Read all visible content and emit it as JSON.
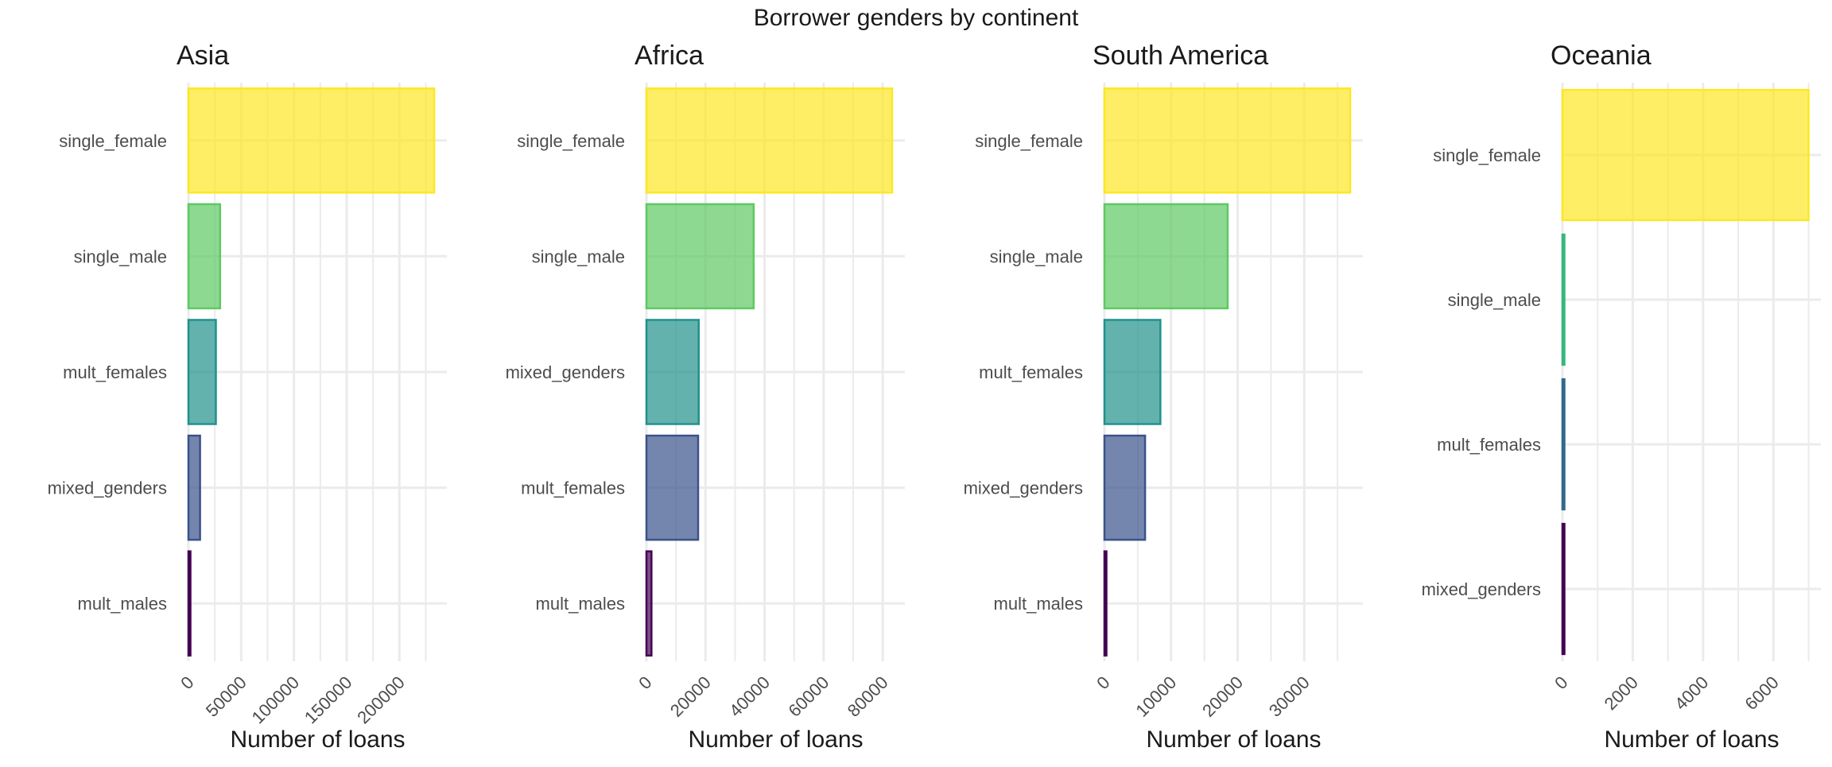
{
  "title": "Borrower genders by continent",
  "chart_data": [
    {
      "type": "bar",
      "orientation": "horizontal",
      "title": "Asia",
      "xlabel": "Number of loans",
      "ylabel": "",
      "categories": [
        "single_female",
        "single_male",
        "mult_females",
        "mixed_genders",
        "mult_males"
      ],
      "values": [
        233000,
        30000,
        26000,
        11000,
        700
      ],
      "colors": [
        "#FDE725",
        "#5EC962",
        "#21918C",
        "#3B528B",
        "#440154"
      ],
      "xlim": [
        0,
        245000
      ],
      "ticks": [
        0,
        50000,
        100000,
        150000,
        200000
      ],
      "tick_labels": [
        "0",
        "50000",
        "100000",
        "150000",
        "200000"
      ],
      "grid": true
    },
    {
      "type": "bar",
      "orientation": "horizontal",
      "title": "Africa",
      "xlabel": "Number of loans",
      "ylabel": "",
      "categories": [
        "single_female",
        "single_male",
        "mixed_genders",
        "mult_females",
        "mult_males"
      ],
      "values": [
        83200,
        36300,
        17700,
        17500,
        1700
      ],
      "colors": [
        "#FDE725",
        "#5EC962",
        "#21918C",
        "#3B528B",
        "#440154"
      ],
      "xlim": [
        0,
        87500
      ],
      "ticks": [
        0,
        20000,
        40000,
        60000,
        80000
      ],
      "tick_labels": [
        "0",
        "20000",
        "40000",
        "60000",
        "80000"
      ],
      "grid": true
    },
    {
      "type": "bar",
      "orientation": "horizontal",
      "title": "South America",
      "xlabel": "Number of loans",
      "ylabel": "",
      "categories": [
        "single_female",
        "single_male",
        "mult_females",
        "mixed_genders",
        "mult_males"
      ],
      "values": [
        36900,
        18500,
        8400,
        6100,
        120
      ],
      "colors": [
        "#FDE725",
        "#5EC962",
        "#21918C",
        "#3B528B",
        "#440154"
      ],
      "xlim": [
        0,
        38800
      ],
      "ticks": [
        0,
        10000,
        20000,
        30000
      ],
      "tick_labels": [
        "0",
        "10000",
        "20000",
        "30000"
      ],
      "grid": true
    },
    {
      "type": "bar",
      "orientation": "horizontal",
      "title": "Oceania",
      "xlabel": "Number of loans",
      "ylabel": "",
      "categories": [
        "single_female",
        "single_male",
        "mult_females",
        "mixed_genders"
      ],
      "values": [
        7000,
        35,
        12,
        6
      ],
      "colors": [
        "#FDE725",
        "#35B779",
        "#31688E",
        "#440154"
      ],
      "xlim": [
        0,
        7350
      ],
      "ticks": [
        0,
        2000,
        4000,
        6000
      ],
      "tick_labels": [
        "0",
        "2000",
        "4000",
        "6000"
      ],
      "grid": true
    }
  ]
}
